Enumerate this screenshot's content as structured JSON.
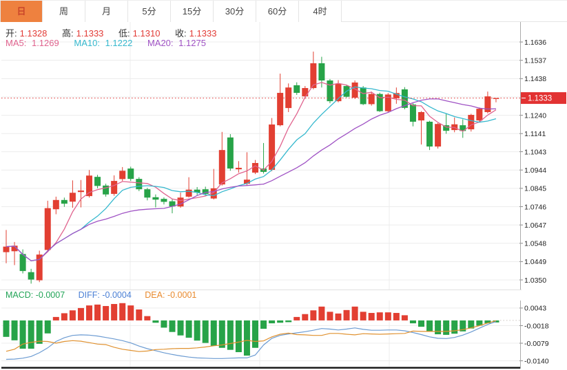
{
  "tabbar": {
    "tabs": [
      {
        "label": "日",
        "active": true
      },
      {
        "label": "周",
        "active": false
      },
      {
        "label": "月",
        "active": false
      },
      {
        "label": "5分",
        "active": false
      },
      {
        "label": "15分",
        "active": false
      },
      {
        "label": "30分",
        "active": false
      },
      {
        "label": "60分",
        "active": false
      },
      {
        "label": "4时",
        "active": false
      }
    ],
    "active_bg": "#ee813f",
    "active_text": "#c9452a"
  },
  "indicator_bar": {
    "ohlc": [
      {
        "label": "开:",
        "value": "1.1328"
      },
      {
        "label": "高:",
        "value": "1.1333"
      },
      {
        "label": "低:",
        "value": "1.1310"
      },
      {
        "label": "收:",
        "value": "1.1333"
      }
    ],
    "ohlc_label_color": "#333333",
    "ohlc_value_color": "#e23b36",
    "ma": [
      {
        "label": "MA5:",
        "value": "1.1269",
        "color": "#e0638e"
      },
      {
        "label": "MA10:",
        "value": "1.1222",
        "color": "#35b8ce"
      },
      {
        "label": "MA20:",
        "value": "1.1275",
        "color": "#9f52c4"
      }
    ]
  },
  "macd_readout": {
    "items": [
      {
        "label": "MACD:",
        "value": "-0.0007",
        "color": "#21a356"
      },
      {
        "label": "DIFF:",
        "value": "-0.0004",
        "color": "#4a7fd4"
      },
      {
        "label": "DEA:",
        "value": "-0.0001",
        "color": "#e8892c"
      }
    ]
  },
  "price_tag": {
    "value": "1.1333",
    "bg": "#e23232",
    "text_color": "#ffffff"
  },
  "colors": {
    "up": "#e23f32",
    "down": "#27a348",
    "grid": "#ececec",
    "axis_border": "#aaaaaa",
    "axis_text": "#222222",
    "dotted_price_line": "#e23232",
    "bottom_bar": "#1a1a1a"
  },
  "chart_data": [
    {
      "type": "candlestick",
      "legend": [
        "MA5",
        "MA10",
        "MA20"
      ],
      "last_price": 1.1333,
      "axis_ticks": [
        1.1636,
        1.1537,
        1.1438,
        1.124,
        1.1141,
        1.1043,
        1.0944,
        1.0845,
        1.0746,
        1.0647,
        1.0548,
        1.0449,
        1.035
      ],
      "gridlines": [
        1.1636,
        1.1537,
        1.1438,
        1.1339,
        1.124,
        1.1141,
        1.1043,
        1.0944,
        1.0845,
        1.0746,
        1.0647,
        1.0548,
        1.0449,
        1.035
      ],
      "ylim": [
        1.0298,
        1.1744
      ],
      "ma_overlays": [
        {
          "name": "MA5",
          "period": 5,
          "color": "#e0638e",
          "current": 1.1269
        },
        {
          "name": "MA10",
          "period": 10,
          "color": "#35b8ce",
          "current": 1.1222
        },
        {
          "name": "MA20",
          "period": 20,
          "color": "#9f52c4",
          "current": 1.1275
        }
      ],
      "candles_format": [
        "open",
        "high",
        "low",
        "close"
      ],
      "candles": [
        [
          1.05,
          1.062,
          1.044,
          1.053
        ],
        [
          1.0505,
          1.0555,
          1.043,
          1.0535
        ],
        [
          1.049,
          1.0515,
          1.0385,
          1.0398
        ],
        [
          1.0392,
          1.041,
          1.033,
          1.0352
        ],
        [
          1.0348,
          1.0508,
          1.0338,
          1.0487
        ],
        [
          1.0512,
          1.0778,
          1.0505,
          1.0738
        ],
        [
          1.0732,
          1.08,
          1.0705,
          1.0782
        ],
        [
          1.0782,
          1.0795,
          1.0745,
          1.0762
        ],
        [
          1.0773,
          1.0888,
          1.074,
          1.0821
        ],
        [
          1.0825,
          1.089,
          1.0742,
          1.0833
        ],
        [
          1.0803,
          1.0944,
          1.0795,
          1.0914
        ],
        [
          1.0907,
          1.0918,
          1.0845,
          1.0858
        ],
        [
          1.086,
          1.087,
          1.08,
          1.0812
        ],
        [
          1.0815,
          1.0915,
          1.0805,
          1.0885
        ],
        [
          1.0895,
          1.096,
          1.0885,
          1.094
        ],
        [
          1.0952,
          1.0962,
          1.0885,
          1.0896
        ],
        [
          1.0896,
          1.0905,
          1.083,
          1.084
        ],
        [
          1.084,
          1.0848,
          1.078,
          1.0795
        ],
        [
          1.0797,
          1.0812,
          1.0742,
          1.0784
        ],
        [
          1.0788,
          1.0796,
          1.0758,
          1.0772
        ],
        [
          1.0775,
          1.0786,
          1.071,
          1.0747
        ],
        [
          1.0747,
          1.0822,
          1.074,
          1.0795
        ],
        [
          1.08,
          1.0905,
          1.0795,
          1.0838
        ],
        [
          1.0838,
          1.0852,
          1.0808,
          1.0822
        ],
        [
          1.084,
          1.0854,
          1.0806,
          1.0815
        ],
        [
          1.079,
          1.095,
          1.0785,
          1.0845
        ],
        [
          1.0866,
          1.115,
          1.086,
          1.1052
        ],
        [
          1.112,
          1.1138,
          1.094,
          1.0952
        ],
        [
          1.0948,
          1.0992,
          1.093,
          1.0956
        ],
        [
          1.087,
          1.104,
          1.0862,
          1.0892
        ],
        [
          1.093,
          1.0998,
          1.0922,
          1.0982
        ],
        [
          1.0952,
          1.109,
          1.0925,
          1.0934
        ],
        [
          1.0945,
          1.1225,
          1.0938,
          1.119
        ],
        [
          1.1186,
          1.1465,
          1.118,
          1.1361
        ],
        [
          1.1279,
          1.1412,
          1.1257,
          1.139
        ],
        [
          1.1402,
          1.1418,
          1.135,
          1.1361
        ],
        [
          1.1342,
          1.1398,
          1.133,
          1.1387
        ],
        [
          1.1387,
          1.1584,
          1.138,
          1.1521
        ],
        [
          1.1521,
          1.1556,
          1.139,
          1.1428
        ],
        [
          1.1428,
          1.1436,
          1.1305,
          1.1316
        ],
        [
          1.1316,
          1.143,
          1.131,
          1.141
        ],
        [
          1.1398,
          1.1406,
          1.1336,
          1.134
        ],
        [
          1.1335,
          1.1428,
          1.1328,
          1.1417
        ],
        [
          1.139,
          1.1398,
          1.1295,
          1.13
        ],
        [
          1.13,
          1.1368,
          1.1292,
          1.1355
        ],
        [
          1.1355,
          1.1362,
          1.1258,
          1.1262
        ],
        [
          1.1262,
          1.136,
          1.1255,
          1.1352
        ],
        [
          1.1332,
          1.139,
          1.1302,
          1.136
        ],
        [
          1.138,
          1.1392,
          1.1272,
          1.128
        ],
        [
          1.1298,
          1.1305,
          1.118,
          1.1205
        ],
        [
          1.1212,
          1.1262,
          1.1082,
          1.1257
        ],
        [
          1.1205,
          1.121,
          1.1052,
          1.1071
        ],
        [
          1.1071,
          1.1198,
          1.106,
          1.1193
        ],
        [
          1.1186,
          1.125,
          1.114,
          1.1156
        ],
        [
          1.116,
          1.1228,
          1.1148,
          1.1191
        ],
        [
          1.1186,
          1.1218,
          1.1118,
          1.1155
        ],
        [
          1.1164,
          1.1248,
          1.1152,
          1.1242
        ],
        [
          1.1212,
          1.1282,
          1.1205,
          1.1275
        ],
        [
          1.1257,
          1.1368,
          1.125,
          1.1342
        ],
        [
          1.1328,
          1.1333,
          1.131,
          1.1333
        ]
      ]
    },
    {
      "type": "macd",
      "axis_ticks": [
        0.0043,
        -0.0018,
        -0.0079,
        -0.014
      ],
      "ylim": [
        -0.016,
        0.0069
      ],
      "diff_color": "#6b9bd2",
      "dea_color": "#e0912f",
      "bars": [
        -0.0057,
        -0.0069,
        -0.0098,
        -0.0098,
        -0.0081,
        -0.0045,
        0.0012,
        0.0025,
        0.0035,
        0.0043,
        0.0052,
        0.0055,
        0.005,
        0.0057,
        0.006,
        0.0052,
        0.0038,
        0.0015,
        -0.0008,
        -0.0025,
        -0.004,
        -0.0052,
        -0.006,
        -0.007,
        -0.0078,
        -0.0088,
        -0.0095,
        -0.0102,
        -0.011,
        -0.0122,
        -0.0095,
        -0.0029,
        -0.001,
        -0.0008,
        -0.0006,
        0.0012,
        0.0022,
        0.0035,
        0.0048,
        0.003,
        0.0024,
        0.0036,
        0.0048,
        0.003,
        0.0026,
        0.0028,
        0.0028,
        0.0026,
        0.0018,
        -0.001,
        -0.0022,
        -0.0038,
        -0.0048,
        -0.005,
        -0.0046,
        -0.0038,
        -0.0028,
        -0.0018,
        -0.001,
        -0.0007
      ],
      "diff": [
        -0.0135,
        -0.0134,
        -0.0131,
        -0.0125,
        -0.0112,
        -0.0095,
        -0.0073,
        -0.006,
        -0.0052,
        -0.005,
        -0.0051,
        -0.0054,
        -0.0059,
        -0.0064,
        -0.007,
        -0.0078,
        -0.0089,
        -0.0098,
        -0.0105,
        -0.0112,
        -0.0118,
        -0.0123,
        -0.0127,
        -0.013,
        -0.0131,
        -0.0132,
        -0.0132,
        -0.0131,
        -0.013,
        -0.013,
        -0.012,
        -0.0085,
        -0.0062,
        -0.0052,
        -0.0047,
        -0.0043,
        -0.0039,
        -0.0034,
        -0.0028,
        -0.003,
        -0.0033,
        -0.003,
        -0.0026,
        -0.0031,
        -0.0034,
        -0.0034,
        -0.0033,
        -0.0033,
        -0.0036,
        -0.0042,
        -0.0049,
        -0.0057,
        -0.0062,
        -0.0063,
        -0.0059,
        -0.0051,
        -0.004,
        -0.0027,
        -0.0014,
        -0.0004
      ],
      "dea": [
        -0.0107,
        -0.01,
        -0.0082,
        -0.0076,
        -0.0072,
        -0.0073,
        -0.0079,
        -0.0073,
        -0.007,
        -0.0072,
        -0.0077,
        -0.0082,
        -0.0084,
        -0.0093,
        -0.01,
        -0.0104,
        -0.0108,
        -0.0106,
        -0.0101,
        -0.01,
        -0.0098,
        -0.0097,
        -0.0097,
        -0.0095,
        -0.0092,
        -0.0088,
        -0.0085,
        -0.008,
        -0.0075,
        -0.0069,
        -0.0073,
        -0.0071,
        -0.0057,
        -0.0048,
        -0.0044,
        -0.0049,
        -0.005,
        -0.0052,
        -0.0052,
        -0.0045,
        -0.0045,
        -0.0048,
        -0.005,
        -0.0046,
        -0.0047,
        -0.0048,
        -0.0047,
        -0.0046,
        -0.0045,
        -0.0037,
        -0.0038,
        -0.0038,
        -0.0038,
        -0.0038,
        -0.0036,
        -0.0032,
        -0.0026,
        -0.0018,
        -0.0009,
        -0.0001
      ]
    }
  ]
}
